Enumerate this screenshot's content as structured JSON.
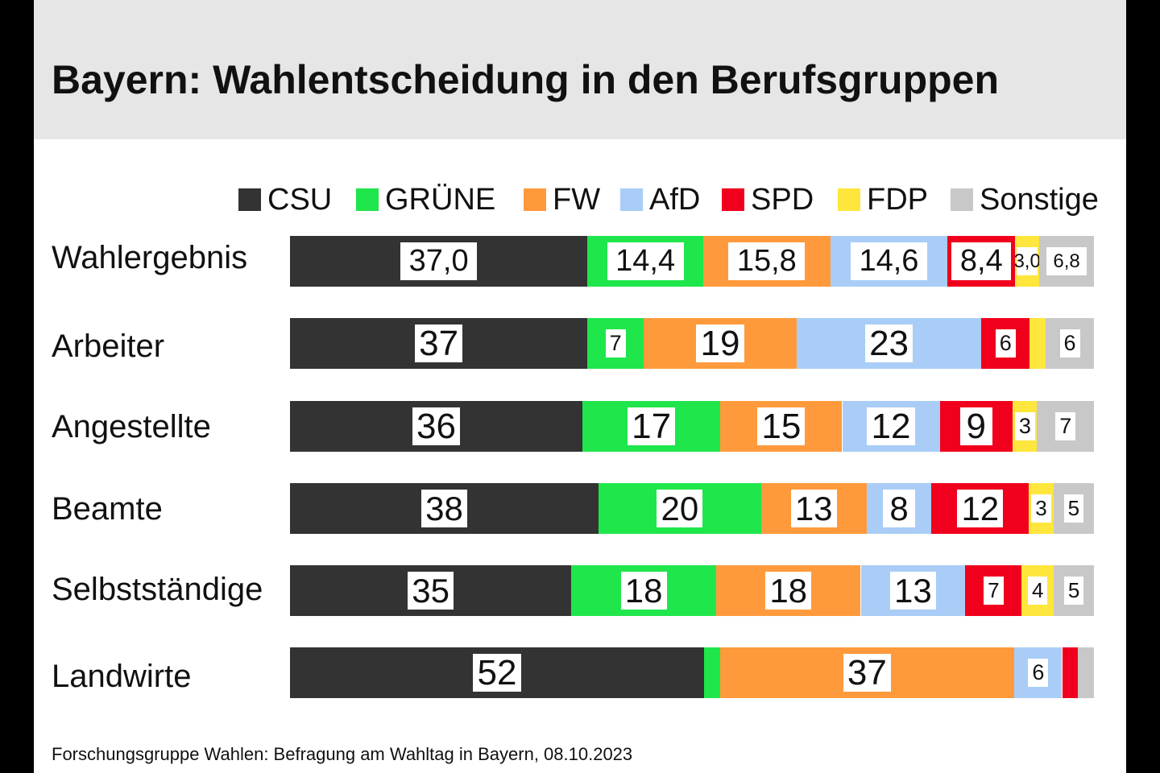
{
  "title": "Bayern: Wahlentscheidung in den Berufsgruppen",
  "source": "Forschungsgruppe Wahlen: Befragung am Wahltag in Bayern, 08.10.2023",
  "chart_data": {
    "type": "bar",
    "orientation": "horizontal",
    "stacked": true,
    "title": "Bayern: Wahlentscheidung in den Berufsgruppen",
    "legend_position": "top",
    "categories": [
      "Wahlergebnis",
      "Arbeiter",
      "Angestellte",
      "Beamte",
      "Selbstständige",
      "Landwirte"
    ],
    "series": [
      {
        "name": "CSU",
        "color": "#333333",
        "values": [
          37.0,
          37,
          36,
          38,
          35,
          52
        ],
        "labels": [
          "37,0",
          "37",
          "36",
          "38",
          "35",
          "52"
        ]
      },
      {
        "name": "GRÜNE",
        "color": "#1fe64b",
        "values": [
          14.4,
          7,
          17,
          20,
          18,
          2
        ],
        "labels": [
          "14,4",
          "7",
          "17",
          "20",
          "18",
          ""
        ]
      },
      {
        "name": "FW",
        "color": "#ff9a3c",
        "values": [
          15.8,
          19,
          15,
          13,
          18,
          37
        ],
        "labels": [
          "15,8",
          "19",
          "15",
          "13",
          "18",
          "37"
        ]
      },
      {
        "name": "AfD",
        "color": "#a9cdf6",
        "values": [
          14.6,
          23,
          12,
          8,
          13,
          6
        ],
        "labels": [
          "14,6",
          "23",
          "12",
          "8",
          "13",
          "6"
        ]
      },
      {
        "name": "SPD",
        "color": "#f0001c",
        "values": [
          8.4,
          6,
          9,
          12,
          7,
          2
        ],
        "labels": [
          "8,4",
          "6",
          "9",
          "12",
          "7",
          ""
        ]
      },
      {
        "name": "FDP",
        "color": "#ffe63c",
        "values": [
          3.0,
          2,
          3,
          3,
          4,
          0
        ],
        "labels": [
          "3,0",
          "",
          "3",
          "3",
          "4",
          ""
        ]
      },
      {
        "name": "Sonstige",
        "color": "#c8c8c8",
        "values": [
          6.8,
          6,
          7,
          5,
          5,
          2
        ],
        "labels": [
          "6,8",
          "6",
          "7",
          "5",
          "5",
          ""
        ]
      }
    ],
    "xlim": [
      0,
      100
    ],
    "grid": false
  }
}
